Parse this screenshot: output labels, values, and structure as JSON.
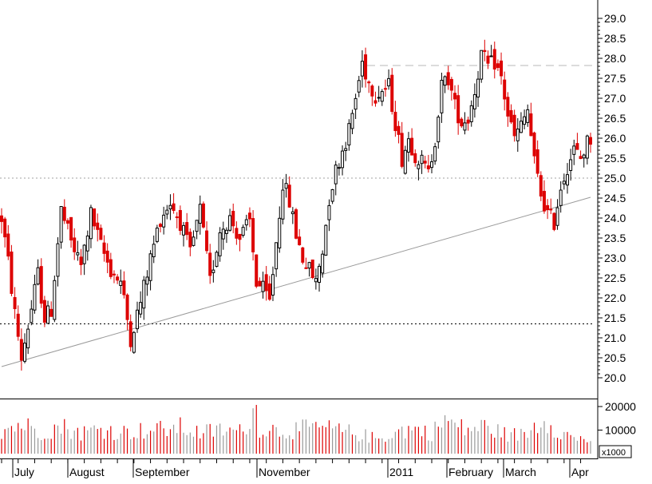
{
  "chart_data": {
    "type": "candlestick",
    "price_axis": {
      "ticks": [
        "20.0",
        "20.5",
        "21.0",
        "21.5",
        "22.0",
        "22.5",
        "23.0",
        "23.5",
        "24.0",
        "24.5",
        "25.0",
        "25.5",
        "26.0",
        "26.5",
        "27.0",
        "27.5",
        "28.0",
        "28.5",
        "29.0"
      ],
      "range": [
        19.6,
        29.25
      ]
    },
    "volume_axis": {
      "ticks": [
        "10000",
        "20000"
      ],
      "multiplier_label": "x1000",
      "range": [
        0,
        21500
      ]
    },
    "x_labels": [
      "July",
      "August",
      "September",
      "November",
      "2011",
      "February",
      "March",
      "Apr"
    ],
    "reference_lines": [
      {
        "kind": "horizontal-dashed",
        "value": 27.82,
        "color": "#b8b8b8"
      },
      {
        "kind": "horizontal-dotted",
        "value": 25.0,
        "color": "#a0a0a0"
      },
      {
        "kind": "horizontal-dotted",
        "value": 21.35,
        "color": "#000000"
      },
      {
        "kind": "trendline",
        "from": {
          "bar": 0,
          "value": 20.28
        },
        "to": {
          "bar": 178,
          "value": 24.52
        },
        "color": "#9a9a9a"
      }
    ],
    "colors": {
      "up": "#000000",
      "down": "#dd0000",
      "volume_up": "#999999",
      "volume_down": "#dd0000"
    },
    "anchors": [
      [
        0,
        24.0
      ],
      [
        2,
        22.9
      ],
      [
        4,
        21.6
      ],
      [
        6,
        20.5
      ],
      [
        8,
        21.3
      ],
      [
        11,
        22.6
      ],
      [
        13,
        21.5
      ],
      [
        15,
        21.7
      ],
      [
        18,
        24.2
      ],
      [
        21,
        23.4
      ],
      [
        24,
        22.8
      ],
      [
        27,
        24.1
      ],
      [
        30,
        23.3
      ],
      [
        33,
        22.7
      ],
      [
        36,
        22.4
      ],
      [
        39,
        21.0
      ],
      [
        42,
        21.9
      ],
      [
        45,
        23.0
      ],
      [
        48,
        24.0
      ],
      [
        51,
        24.4
      ],
      [
        54,
        23.9
      ],
      [
        57,
        23.1
      ],
      [
        60,
        24.2
      ],
      [
        63,
        22.4
      ],
      [
        66,
        23.7
      ],
      [
        69,
        24.0
      ],
      [
        72,
        23.5
      ],
      [
        75,
        23.9
      ],
      [
        77,
        22.4
      ],
      [
        79,
        22.2
      ],
      [
        81,
        21.9
      ],
      [
        83,
        23.4
      ],
      [
        85,
        24.9
      ],
      [
        87,
        24.4
      ],
      [
        89,
        23.6
      ],
      [
        91,
        23.0
      ],
      [
        93,
        22.7
      ],
      [
        95,
        22.4
      ],
      [
        97,
        23.2
      ],
      [
        99,
        24.5
      ],
      [
        101,
        25.2
      ],
      [
        103,
        25.7
      ],
      [
        105,
        26.2
      ],
      [
        107,
        27.0
      ],
      [
        109,
        27.9
      ],
      [
        111,
        27.4
      ],
      [
        113,
        27.1
      ],
      [
        115,
        27.2
      ],
      [
        117,
        27.3
      ],
      [
        119,
        26.4
      ],
      [
        121,
        25.5
      ],
      [
        123,
        26.0
      ],
      [
        125,
        25.6
      ],
      [
        127,
        25.4
      ],
      [
        129,
        25.1
      ],
      [
        131,
        26.0
      ],
      [
        133,
        27.3
      ],
      [
        135,
        27.5
      ],
      [
        137,
        26.8
      ],
      [
        139,
        26.4
      ],
      [
        141,
        26.5
      ],
      [
        143,
        27.2
      ],
      [
        145,
        28.1
      ],
      [
        147,
        27.8
      ],
      [
        149,
        27.9
      ],
      [
        151,
        27.5
      ],
      [
        153,
        26.6
      ],
      [
        155,
        26.0
      ],
      [
        157,
        26.3
      ],
      [
        159,
        26.7
      ],
      [
        161,
        25.4
      ],
      [
        163,
        24.6
      ],
      [
        165,
        24.1
      ],
      [
        167,
        23.9
      ],
      [
        169,
        24.8
      ],
      [
        171,
        25.3
      ],
      [
        173,
        25.7
      ],
      [
        175,
        25.5
      ],
      [
        177,
        25.9
      ],
      [
        178,
        26.0
      ]
    ],
    "volume_anchors": [
      [
        0,
        11000
      ],
      [
        6,
        13500
      ],
      [
        12,
        10000
      ],
      [
        18,
        12500
      ],
      [
        24,
        9500
      ],
      [
        30,
        11500
      ],
      [
        36,
        9800
      ],
      [
        42,
        10500
      ],
      [
        48,
        11000
      ],
      [
        54,
        12000
      ],
      [
        60,
        9500
      ],
      [
        66,
        10800
      ],
      [
        72,
        10000
      ],
      [
        77,
        20500
      ],
      [
        78,
        12000
      ],
      [
        84,
        10500
      ],
      [
        90,
        11000
      ],
      [
        96,
        12000
      ],
      [
        102,
        10500
      ],
      [
        108,
        9000
      ],
      [
        114,
        6500
      ],
      [
        118,
        9500
      ],
      [
        124,
        11500
      ],
      [
        130,
        9500
      ],
      [
        134,
        15500
      ],
      [
        140,
        11000
      ],
      [
        146,
        12500
      ],
      [
        152,
        9000
      ],
      [
        158,
        8500
      ],
      [
        164,
        16500
      ],
      [
        168,
        11000
      ],
      [
        172,
        7500
      ],
      [
        178,
        6500
      ]
    ],
    "bar_count": 179
  }
}
